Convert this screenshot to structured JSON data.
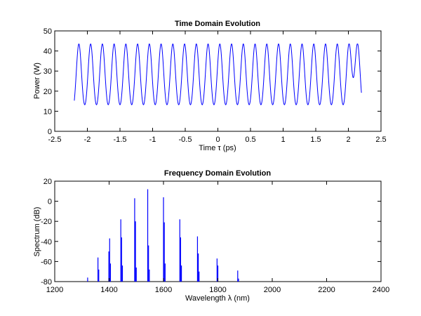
{
  "chart_data": [
    {
      "type": "line",
      "title": "Time Domain Evolution",
      "xlabel": "Time τ (ps)",
      "ylabel": "Power (W)",
      "xlim": [
        -2.5,
        2.5
      ],
      "ylim": [
        0,
        50
      ],
      "xticks": [
        -2.5,
        -2,
        -1.5,
        -1,
        -0.5,
        0,
        0.5,
        1,
        1.5,
        2,
        2.5
      ],
      "yticks": [
        0,
        10,
        20,
        30,
        40,
        50
      ],
      "grid": false,
      "line_color": "#0000ff",
      "series": [
        {
          "x_range": [
            -2.2,
            2.2
          ],
          "pulse_peak_positions": [
            -2.13,
            -1.95,
            -1.77,
            -1.59,
            -1.41,
            -1.23,
            -1.05,
            -0.87,
            -0.69,
            -0.51,
            -0.33,
            -0.15,
            0.03,
            0.21,
            0.39,
            0.57,
            0.75,
            0.93,
            1.11,
            1.29,
            1.47,
            1.65,
            1.83,
            2.01,
            2.14
          ],
          "peak_power": 43.5,
          "min_power": 7.5
        }
      ]
    },
    {
      "type": "bar",
      "title": "Frequency Domain Evolution",
      "xlabel": "Wavelength λ (nm)",
      "ylabel": "Spectrum (dB)",
      "xlim": [
        1200,
        2400
      ],
      "ylim": [
        -80,
        20
      ],
      "xticks": [
        1200,
        1400,
        1600,
        1800,
        2000,
        2200,
        2400
      ],
      "yticks": [
        -80,
        -60,
        -40,
        -20,
        0,
        20
      ],
      "grid": false,
      "line_color": "#0000ff",
      "series": [
        {
          "lines": [
            {
              "x": 1321,
              "y": -76
            },
            {
              "x": 1359,
              "y": -56
            },
            {
              "x": 1362,
              "y": -68
            },
            {
              "x": 1399,
              "y": -50
            },
            {
              "x": 1402,
              "y": -37
            },
            {
              "x": 1405,
              "y": -62
            },
            {
              "x": 1443,
              "y": -18
            },
            {
              "x": 1446,
              "y": -36
            },
            {
              "x": 1449,
              "y": -64
            },
            {
              "x": 1494,
              "y": 3
            },
            {
              "x": 1497,
              "y": -20
            },
            {
              "x": 1500,
              "y": -66
            },
            {
              "x": 1542,
              "y": 12
            },
            {
              "x": 1545,
              "y": -44
            },
            {
              "x": 1548,
              "y": -68
            },
            {
              "x": 1600,
              "y": 4
            },
            {
              "x": 1603,
              "y": -21
            },
            {
              "x": 1606,
              "y": -62
            },
            {
              "x": 1660,
              "y": -18
            },
            {
              "x": 1663,
              "y": -36
            },
            {
              "x": 1666,
              "y": -64
            },
            {
              "x": 1725,
              "y": -35
            },
            {
              "x": 1728,
              "y": -52
            },
            {
              "x": 1731,
              "y": -70
            },
            {
              "x": 1797,
              "y": -57
            },
            {
              "x": 1800,
              "y": -64
            },
            {
              "x": 1873,
              "y": -69
            },
            {
              "x": 1876,
              "y": -77
            }
          ]
        }
      ]
    }
  ]
}
